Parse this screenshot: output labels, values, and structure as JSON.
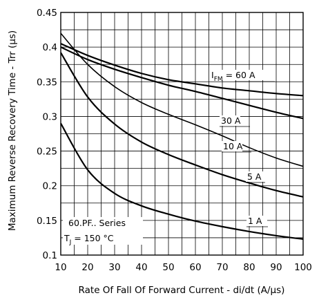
{
  "chart_data": {
    "type": "line",
    "xlabel": "Rate Of Fall Of Forward Current - di/dt (A/µs)",
    "ylabel": "Maximum Reverse Recovery Time - Trr (µs)",
    "xlim": [
      10,
      100
    ],
    "ylim": [
      0.1,
      0.45
    ],
    "x_ticks": [
      "10",
      "20",
      "30",
      "40",
      "50",
      "60",
      "70",
      "80",
      "90",
      "100"
    ],
    "y_ticks": [
      "0.1",
      "0.15",
      "0.2",
      "0.25",
      "0.3",
      "0.35",
      "0.4",
      "0.45"
    ],
    "grid": true,
    "annotation": {
      "line1": "60.PF.. Series",
      "line2_main": "T",
      "line2_sub": "J",
      "line2_rest": " = 150 °C"
    },
    "series": [
      {
        "name": "60 A",
        "label_main": "I",
        "label_sub": "FM",
        "label_rest": " = 60 A",
        "x": [
          10,
          20,
          30,
          40,
          50,
          60,
          70,
          80,
          90,
          100
        ],
        "y": [
          0.405,
          0.388,
          0.374,
          0.362,
          0.353,
          0.347,
          0.341,
          0.337,
          0.333,
          0.33
        ]
      },
      {
        "name": "30 A",
        "label_main": "30 A",
        "x": [
          10,
          20,
          30,
          40,
          50,
          60,
          70,
          80,
          90,
          100
        ],
        "y": [
          0.4,
          0.382,
          0.368,
          0.356,
          0.345,
          0.336,
          0.326,
          0.316,
          0.306,
          0.297
        ]
      },
      {
        "name": "10 A",
        "label_main": "10 A",
        "x": [
          10,
          20,
          30,
          40,
          50,
          60,
          70,
          80,
          90,
          100
        ],
        "y": [
          0.42,
          0.375,
          0.343,
          0.32,
          0.303,
          0.288,
          0.272,
          0.255,
          0.24,
          0.228
        ]
      },
      {
        "name": "5 A",
        "label_main": "5 A",
        "x": [
          10,
          20,
          30,
          40,
          50,
          60,
          70,
          80,
          90,
          100
        ],
        "y": [
          0.392,
          0.328,
          0.289,
          0.263,
          0.245,
          0.23,
          0.216,
          0.204,
          0.193,
          0.184
        ]
      },
      {
        "name": "1 A",
        "label_main": "1 A",
        "x": [
          10,
          20,
          30,
          40,
          50,
          60,
          70,
          80,
          90,
          100
        ],
        "y": [
          0.29,
          0.223,
          0.189,
          0.171,
          0.159,
          0.149,
          0.141,
          0.134,
          0.128,
          0.123
        ]
      }
    ]
  }
}
